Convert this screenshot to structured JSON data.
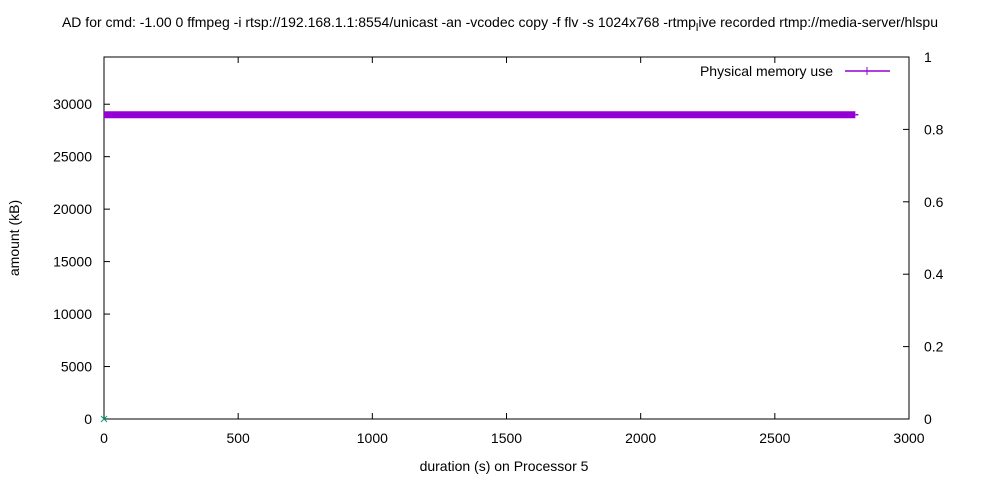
{
  "chart_data": {
    "type": "line",
    "title": "AD for cmd: -1.00 0 ffmpeg -i rtsp://192.168.1.1:8554/unicast -an -vcodec copy -f flv -s 1024x768 -rtmp_live recorded rtmp://media-server/hlspu",
    "title_parts": {
      "pre": "AD for cmd: -1.00 0 ffmpeg -i rtsp://192.168.1.1:8554/unicast -an -vcodec copy -f flv -s 1024x768 -rtmp",
      "sub": "l",
      "post": "ive recorded rtmp://media-server/hlspu"
    },
    "xlabel": "duration (s) on Processor 5",
    "ylabel": "amount (kB)",
    "xlim": [
      0,
      3000
    ],
    "ylim": [
      0,
      34500
    ],
    "y2lim": [
      0,
      1
    ],
    "x_ticks": [
      0,
      500,
      1000,
      1500,
      2000,
      2500,
      3000
    ],
    "y_ticks": [
      0,
      5000,
      10000,
      15000,
      20000,
      25000,
      30000
    ],
    "y2_ticks": [
      0,
      0.2,
      0.4,
      0.6,
      0.8,
      1
    ],
    "y2_tick_labels": [
      "0",
      "0.2",
      "0.4",
      "0.6",
      "0.8",
      "1"
    ],
    "grid": false,
    "legend_position": "top-right",
    "series": [
      {
        "name": "Physical memory use",
        "color": "#9400d3",
        "x": [
          0,
          2800
        ],
        "y": [
          29000,
          29000
        ]
      }
    ],
    "points": [
      {
        "x": 0,
        "y": 0,
        "color": "#009e73",
        "marker": "x"
      }
    ]
  }
}
